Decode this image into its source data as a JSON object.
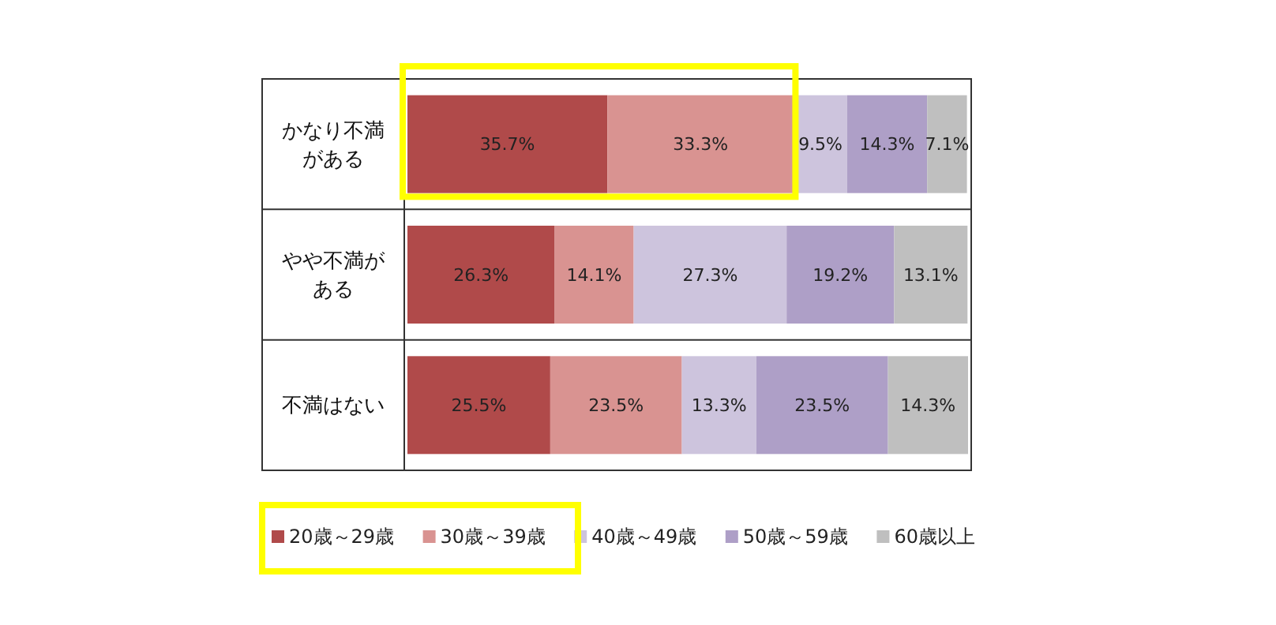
{
  "chart_data": {
    "type": "bar",
    "orientation": "horizontal",
    "stacked": true,
    "legend": "bottom",
    "categories": [
      "かなり不満がある",
      "やや不満がある",
      "不満はない"
    ],
    "series": [
      {
        "name": "20歳～29歳",
        "color": "#b04a4a",
        "values": [
          35.7,
          26.3,
          25.5
        ],
        "value_labels": [
          "35.7%",
          "26.3%",
          "25.5%"
        ]
      },
      {
        "name": "30歳～39歳",
        "color": "#d99391",
        "values": [
          33.3,
          14.1,
          23.5
        ],
        "value_labels": [
          "33.3%",
          "14.1%",
          "23.5%"
        ]
      },
      {
        "name": "40歳～49歳",
        "color": "#cdc4dd",
        "values": [
          9.5,
          27.3,
          13.3
        ],
        "value_labels": [
          "9.5%",
          "27.3%",
          "13.3%"
        ]
      },
      {
        "name": "50歳～59歳",
        "color": "#ae9fc7",
        "values": [
          14.3,
          19.2,
          23.5
        ],
        "value_labels": [
          "14.3%",
          "19.2%",
          "23.5%"
        ]
      },
      {
        "name": "60歳以上",
        "color": "#bfbfbf",
        "values": [
          7.1,
          13.1,
          14.3
        ],
        "value_labels": [
          "7.1%",
          "13.1%",
          "14.3%"
        ]
      }
    ]
  }
}
